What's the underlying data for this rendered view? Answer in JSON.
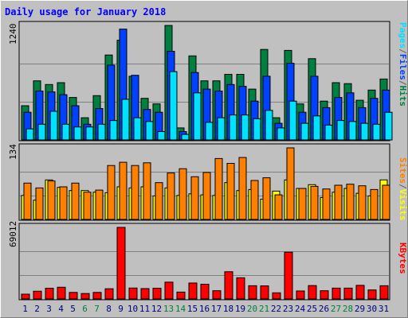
{
  "chart_data": [
    {
      "type": "bar",
      "title": "Daily usage for January 2018",
      "ymax_label": "1240",
      "ylim": [
        0,
        1240
      ],
      "legend": [
        {
          "label": "Pages",
          "color": "#00e0ff"
        },
        {
          "label": "/",
          "color": "#606060"
        },
        {
          "label": "Files",
          "color": "#0040ff"
        },
        {
          "label": "/",
          "color": "#606060"
        },
        {
          "label": "Hits",
          "color": "#008040"
        }
      ],
      "categories": [
        "1",
        "2",
        "3",
        "4",
        "5",
        "6",
        "7",
        "8",
        "9",
        "10",
        "11",
        "12",
        "13",
        "14",
        "15",
        "16",
        "17",
        "18",
        "19",
        "20",
        "21",
        "22",
        "23",
        "24",
        "25",
        "26",
        "27",
        "28",
        "29",
        "30",
        "31"
      ],
      "series": [
        {
          "name": "Hits",
          "color": "#008040",
          "values": [
            370,
            640,
            600,
            620,
            460,
            240,
            480,
            920,
            1080,
            690,
            450,
            390,
            1240,
            130,
            910,
            640,
            640,
            710,
            710,
            550,
            980,
            240,
            970,
            390,
            880,
            420,
            620,
            610,
            430,
            540,
            660
          ]
        },
        {
          "name": "Files",
          "color": "#0040ff",
          "values": [
            300,
            530,
            520,
            490,
            370,
            170,
            340,
            810,
            1200,
            700,
            330,
            300,
            960,
            90,
            730,
            550,
            530,
            600,
            580,
            420,
            690,
            180,
            830,
            300,
            690,
            350,
            460,
            510,
            350,
            450,
            540
          ]
        },
        {
          "name": "Pages",
          "color": "#00e0ff",
          "values": [
            120,
            170,
            310,
            170,
            140,
            140,
            170,
            210,
            440,
            240,
            200,
            90,
            740,
            60,
            510,
            190,
            240,
            270,
            270,
            230,
            320,
            130,
            420,
            180,
            260,
            160,
            210,
            200,
            180,
            170,
            300
          ]
        }
      ]
    },
    {
      "type": "bar",
      "ymax_label": "134",
      "ylim": [
        0,
        134
      ],
      "legend": [
        {
          "label": "Sites",
          "color": "#ff8000"
        },
        {
          "label": "/",
          "color": "#606060"
        },
        {
          "label": "Visits",
          "color": "#ffff00"
        }
      ],
      "categories": [
        "1",
        "2",
        "3",
        "4",
        "5",
        "6",
        "7",
        "8",
        "9",
        "10",
        "11",
        "12",
        "13",
        "14",
        "15",
        "16",
        "17",
        "18",
        "19",
        "20",
        "21",
        "22",
        "23",
        "24",
        "25",
        "26",
        "27",
        "28",
        "29",
        "30",
        "31"
      ],
      "series": [
        {
          "name": "Visits",
          "color": "#ffff00",
          "values": [
            45,
            36,
            74,
            60,
            54,
            54,
            51,
            50,
            61,
            59,
            61,
            44,
            59,
            45,
            48,
            46,
            45,
            69,
            54,
            56,
            38,
            53,
            74,
            58,
            65,
            41,
            51,
            58,
            49,
            44,
            74
          ]
        },
        {
          "name": "Sites",
          "color": "#ff8000",
          "values": [
            68,
            59,
            72,
            61,
            68,
            51,
            55,
            101,
            107,
            101,
            106,
            69,
            87,
            95,
            80,
            88,
            114,
            105,
            116,
            73,
            78,
            46,
            134,
            58,
            62,
            57,
            64,
            66,
            63,
            56,
            64
          ]
        }
      ]
    },
    {
      "type": "bar",
      "ymax_label": "69012",
      "ylim": [
        0,
        69012
      ],
      "legend": [
        {
          "label": "KBytes",
          "color": "#ff0000"
        }
      ],
      "categories": [
        "1",
        "2",
        "3",
        "4",
        "5",
        "6",
        "7",
        "8",
        "9",
        "10",
        "11",
        "12",
        "13",
        "14",
        "15",
        "16",
        "17",
        "18",
        "19",
        "20",
        "21",
        "22",
        "23",
        "24",
        "25",
        "26",
        "27",
        "28",
        "29",
        "30",
        "31"
      ],
      "weekend_days": [
        "6",
        "7",
        "13",
        "14",
        "20",
        "21",
        "27",
        "28"
      ],
      "series": [
        {
          "name": "KBytes",
          "color": "#ff0000",
          "values": [
            4600,
            7400,
            10300,
            11300,
            6300,
            5200,
            6300,
            9800,
            69012,
            10500,
            10000,
            10300,
            16200,
            6600,
            15300,
            14200,
            7900,
            26200,
            20400,
            12700,
            12600,
            5900,
            45100,
            7700,
            12900,
            7900,
            10400,
            10400,
            13100,
            8700,
            12700
          ]
        }
      ]
    }
  ],
  "x_axis": {
    "labels": [
      "1",
      "2",
      "3",
      "4",
      "5",
      "6",
      "7",
      "8",
      "9",
      "10",
      "11",
      "12",
      "13",
      "14",
      "15",
      "16",
      "17",
      "18",
      "19",
      "20",
      "21",
      "22",
      "23",
      "24",
      "25",
      "26",
      "27",
      "28",
      "29",
      "30",
      "31"
    ],
    "weekend_color": "#008040",
    "weekday_color": "#000080"
  },
  "colors": {
    "background": "#c0c0c0",
    "title": "#0000ff",
    "frame_dark": "#808080",
    "plot_bg": "#c0c0c0",
    "grid": "#808080"
  }
}
